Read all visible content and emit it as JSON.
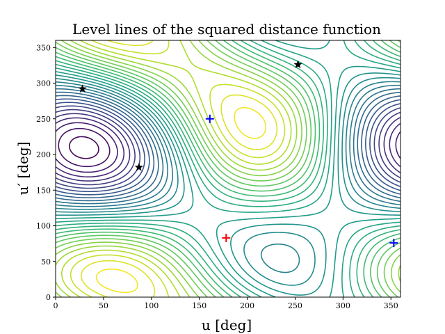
{
  "chart_data": {
    "type": "contour",
    "title": "Level lines of the squared distance function",
    "xlabel": "u [deg]",
    "ylabel": "u′ [deg]",
    "xlim": [
      0,
      360
    ],
    "ylim": [
      0,
      360
    ],
    "xticks": [
      0,
      50,
      100,
      150,
      200,
      250,
      300,
      350
    ],
    "yticks": [
      0,
      50,
      100,
      150,
      200,
      250,
      300,
      350
    ],
    "grid": false,
    "colormap": "viridis",
    "maximum_markers": [
      {
        "x": 178,
        "y": 83,
        "color": "#ff0000",
        "marker": "plus"
      }
    ],
    "minimum_markers": [
      {
        "x": 161,
        "y": 250,
        "color": "#0000ff",
        "marker": "plus"
      },
      {
        "x": 353,
        "y": 76,
        "color": "#0000ff",
        "marker": "plus"
      }
    ],
    "saddle_markers": [
      {
        "x": 28,
        "y": 292,
        "color": "#000000",
        "marker": "star"
      },
      {
        "x": 87,
        "y": 182,
        "color": "#000000",
        "marker": "star"
      },
      {
        "x": 253,
        "y": 326,
        "color": "#000000",
        "marker": "star"
      }
    ]
  }
}
